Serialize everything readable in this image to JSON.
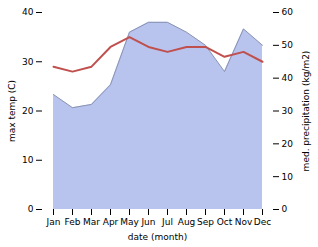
{
  "chart_data": {
    "type": "line",
    "categories": [
      "Jan",
      "Feb",
      "Mar",
      "Apr",
      "May",
      "Jun",
      "Jul",
      "Aug",
      "Sep",
      "Oct",
      "Nov",
      "Dec"
    ],
    "series": [
      {
        "type": "line",
        "color": "#c0504d",
        "values": [
          29,
          28,
          29,
          33,
          35,
          33,
          32,
          33,
          33,
          31,
          32,
          30
        ]
      },
      {
        "type": "area",
        "color": "#b8c4ee",
        "axis": "y2",
        "values": [
          35,
          31,
          32,
          38,
          54,
          57,
          57,
          54,
          50,
          42,
          55,
          50
        ]
      }
    ],
    "xlabel": "date (month)",
    "ylabel": "max temp (C)",
    "y2label": "med. precipitation (kg/m2)",
    "ylim": [
      0,
      40
    ],
    "yticks": [
      0,
      10,
      20,
      30,
      40
    ],
    "y2lim": [
      0,
      60
    ],
    "y2ticks": [
      0,
      10,
      20,
      30,
      40,
      50,
      60
    ],
    "grid": false
  }
}
